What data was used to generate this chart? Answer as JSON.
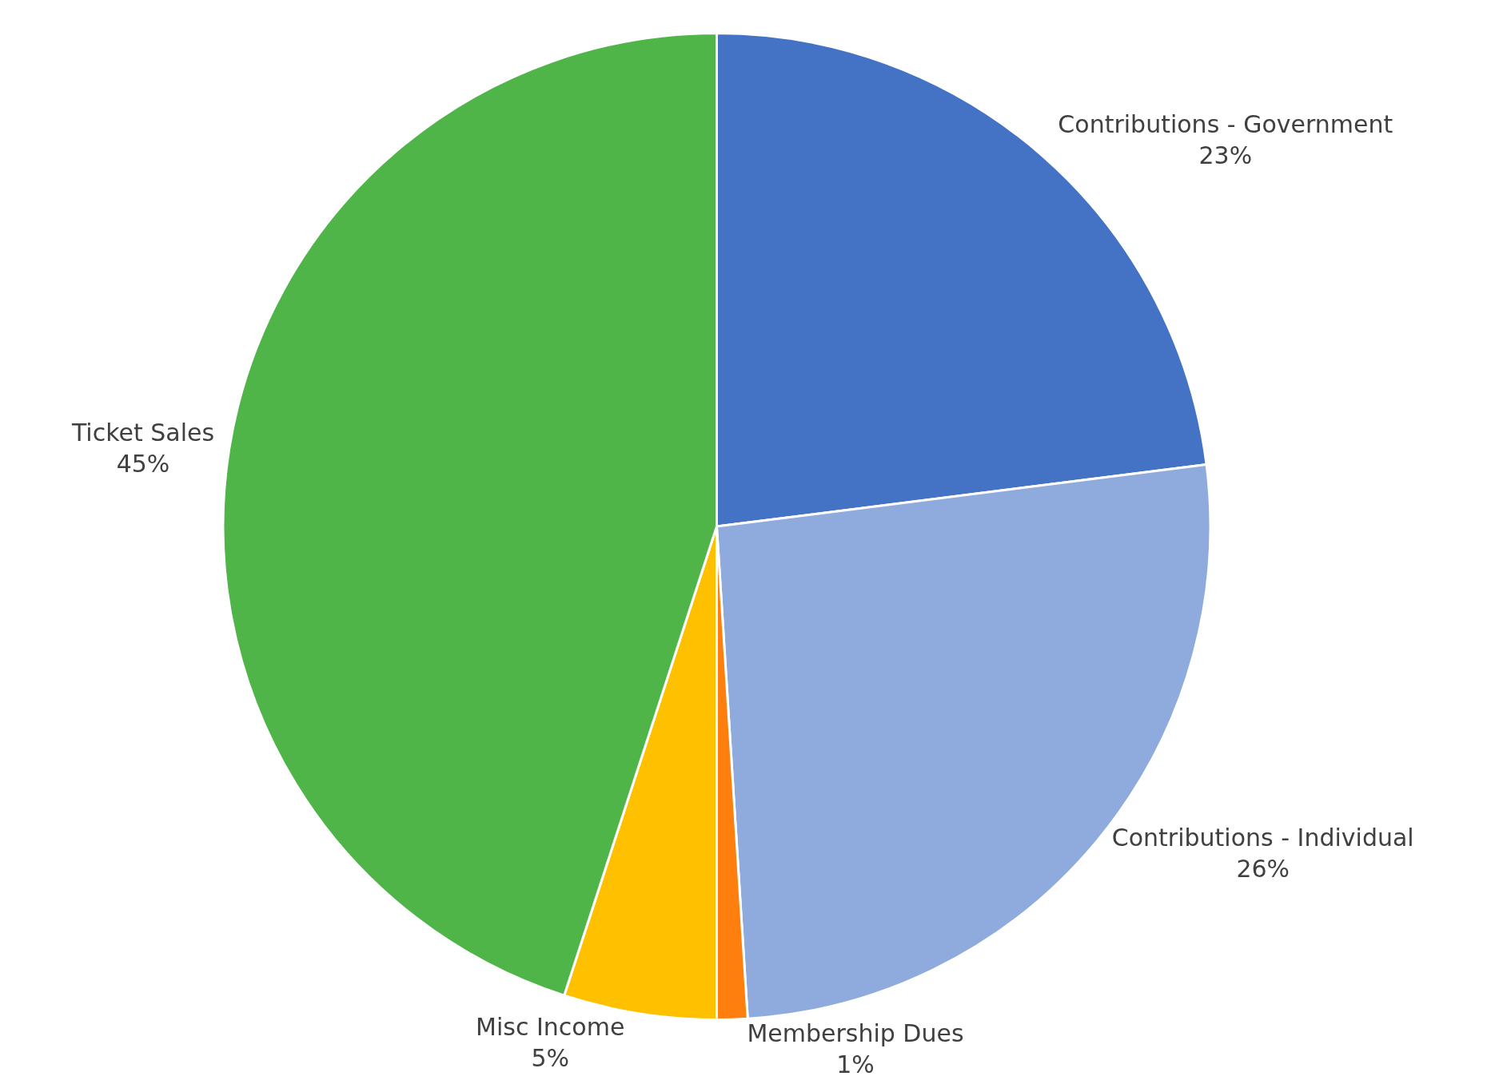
{
  "chart_data": {
    "type": "pie",
    "categories": [
      "Contributions - Government",
      "Contributions - Individual",
      "Membership Dues",
      "Misc Income",
      "Ticket Sales"
    ],
    "values": [
      23,
      26,
      1,
      5,
      45
    ],
    "value_labels": [
      "23%",
      "26%",
      "1%",
      "5%",
      "45%"
    ],
    "colors": [
      "#4472c4",
      "#8faadc",
      "#ff7f0e",
      "#ffc000",
      "#4fb548"
    ],
    "legend": false
  }
}
